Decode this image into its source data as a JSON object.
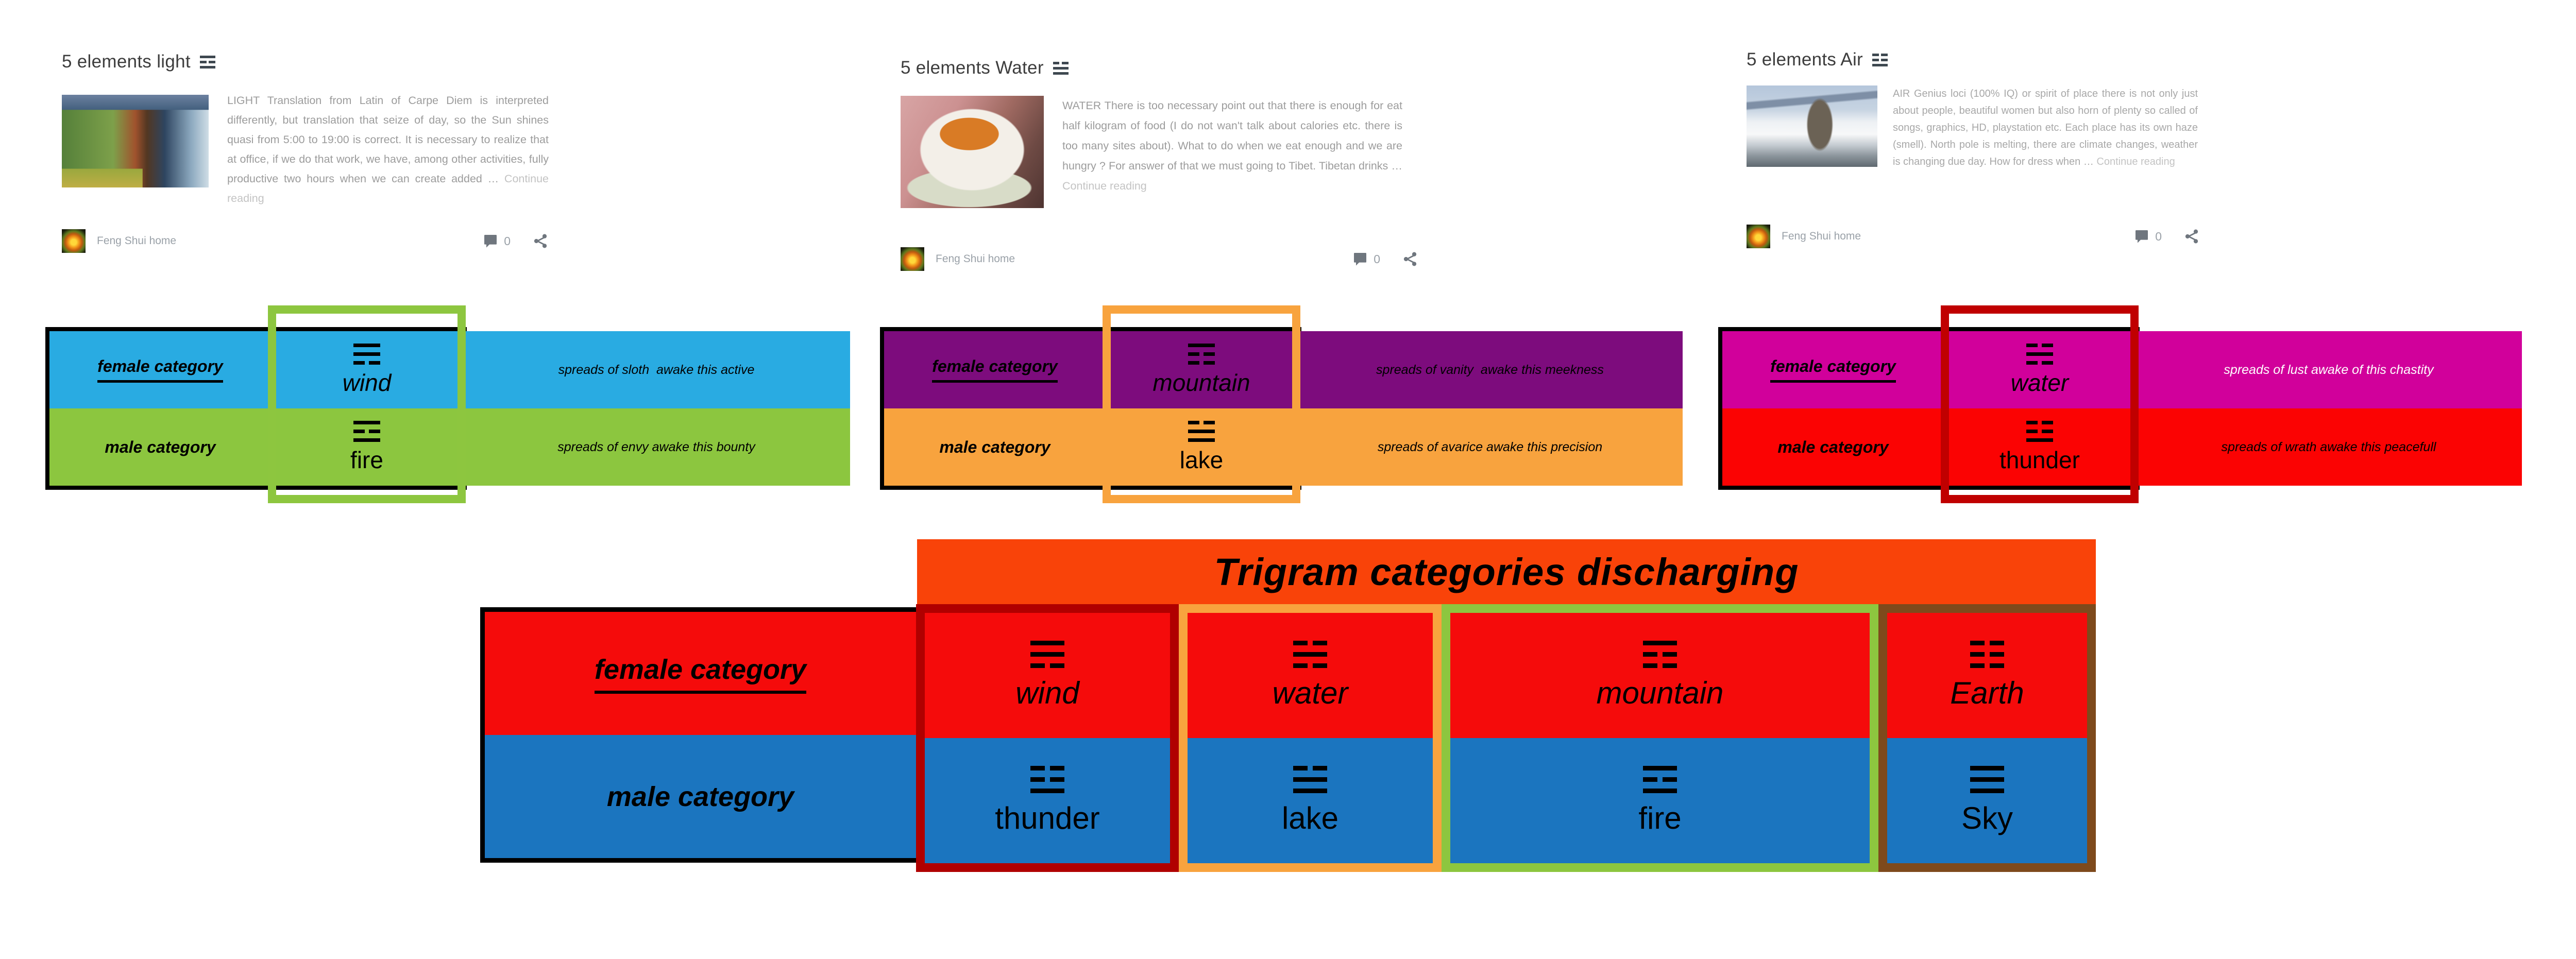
{
  "cards": [
    {
      "title": "5 elements light",
      "title_icon": {
        "name": "trigram-fire-icon",
        "pattern": "solid,broken,solid"
      },
      "excerpt": "LIGHT  Translation from Latin of Carpe Diem is interpreted differently, but translation that seize of day, so the Sun shines quasi from 5:00 to 19:00 is correct. It is necessary to realize that at office, if we do that work, we have, among other activities, fully productive two hours when we can create added …",
      "continue_label": "Continue reading",
      "author": "Feng Shui home",
      "comments_count": "0"
    },
    {
      "title": "5 elements Water",
      "title_icon": {
        "name": "trigram-lake-icon",
        "pattern": "broken,solid,solid"
      },
      "excerpt": "WATER There is too necessary point out that there is enough for eat half kilogram of food (I do not wan't talk about calories etc. there is too many sites about). What to do when we eat enough and we are hungry ? For answer of that we must going to Tibet. Tibetan drinks …",
      "continue_label": "Continue reading",
      "author": "Feng Shui home",
      "comments_count": "0"
    },
    {
      "title": "5 elements Air",
      "title_icon": {
        "name": "trigram-thunder-icon",
        "pattern": "broken,broken,solid"
      },
      "excerpt": "AIR Genius loci (100% IQ) or spirit of place there is not only just about people, beautiful women but also horn of plenty so called of songs, graphics, HD, playstation etc. Each place has its own haze (smell). North pole is melting, there are climate changes, weather is changing due day. How for dress when …",
      "continue_label": "Continue reading",
      "author": "Feng Shui home",
      "comments_count": "0"
    }
  ],
  "element_tables": [
    {
      "box_color": "#8DC63F",
      "rows": [
        {
          "category": "female category",
          "element": "wind",
          "trigram": "solid,solid,broken",
          "spread": "spreads of sloth  awake this active",
          "bg": "#29ABE2",
          "spread_color": "#000000"
        },
        {
          "category": "male category",
          "element": "fire",
          "trigram": "solid,broken,solid",
          "spread": "spreads of envy awake this bounty",
          "bg": "#8CC63F",
          "spread_color": "#000000"
        }
      ]
    },
    {
      "box_color": "#F8A33E",
      "rows": [
        {
          "category": "female category",
          "element": "mountain",
          "trigram": "solid,broken,broken",
          "spread": "spreads of vanity  awake this meekness",
          "bg": "#7D0C7D",
          "spread_color": "#000000"
        },
        {
          "category": "male category",
          "element": "lake",
          "trigram": "broken,solid,solid",
          "spread": "spreads of avarice awake this precision",
          "bg": "#F8A33E",
          "spread_color": "#000000"
        }
      ]
    },
    {
      "box_color": "#C00000",
      "rows": [
        {
          "category": "female category",
          "element": "water",
          "trigram": "broken,solid,broken",
          "spread": "spreads of lust awake of this chastity",
          "bg": "#D1009B",
          "spread_color": "#FFFFFF"
        },
        {
          "category": "male category",
          "element": "thunder",
          "trigram": "broken,broken,solid",
          "spread": "spreads of wrath awake this peacefull",
          "bg": "#FB0303",
          "spread_color": "#000000"
        }
      ]
    }
  ],
  "banner": {
    "label": "Trigram categories discharging",
    "bg": "#F94309"
  },
  "discharge_table": {
    "female_label": "female category",
    "male_label": "male category",
    "female_bg": "#F50B0B",
    "male_bg": "#1B75BF",
    "columns": [
      {
        "female_element": "wind",
        "female_trigram": "solid,solid,broken",
        "male_element": "thunder",
        "male_trigram": "broken,broken,solid",
        "box_color": "#B00000"
      },
      {
        "female_element": "water",
        "female_trigram": "broken,solid,broken",
        "male_element": "lake",
        "male_trigram": "broken,solid,solid",
        "box_color": "#F8A33E"
      },
      {
        "female_element": "mountain",
        "female_trigram": "solid,broken,broken",
        "male_element": "fire",
        "male_trigram": "solid,broken,solid",
        "box_color": "#8DC63F"
      },
      {
        "female_element": "Earth",
        "female_trigram": "broken,broken,broken",
        "male_element": "Sky",
        "male_trigram": "solid,solid,solid",
        "box_color": "#7E4A1C"
      }
    ]
  }
}
